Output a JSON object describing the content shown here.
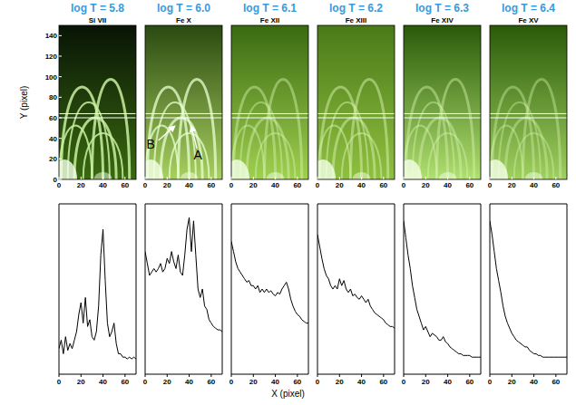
{
  "images": {
    "y_label": "Y (pixel)",
    "xlim": [
      0,
      70
    ],
    "xticks": [
      0,
      20,
      40,
      60
    ],
    "ylim": [
      0,
      150
    ],
    "yticks": [
      0,
      20,
      40,
      60,
      80,
      100,
      120,
      140
    ],
    "cut_y": [
      60,
      64
    ],
    "annotations": [
      {
        "label": "B",
        "panel": 1
      },
      {
        "label": "A",
        "panel": 1
      }
    ]
  },
  "x_label": "X (pixel)",
  "chart_data": [
    {
      "type": "line",
      "title": "log T = 5.8",
      "subtitle": "Si VII",
      "color": "#000000",
      "tick_labels": "x",
      "xlim": [
        0,
        70
      ],
      "xticks": [
        0,
        20,
        40,
        60
      ],
      "ylim": [
        0,
        100
      ],
      "x": [
        0,
        2,
        4,
        6,
        8,
        10,
        12,
        14,
        16,
        18,
        20,
        22,
        24,
        26,
        28,
        30,
        32,
        34,
        36,
        38,
        40,
        42,
        44,
        46,
        48,
        50,
        52,
        54,
        56,
        58,
        60,
        62,
        64,
        66,
        68,
        70
      ],
      "values": [
        15,
        20,
        12,
        22,
        14,
        18,
        15,
        20,
        25,
        35,
        42,
        30,
        45,
        28,
        32,
        22,
        20,
        25,
        40,
        70,
        85,
        55,
        30,
        22,
        25,
        30,
        18,
        12,
        12,
        10,
        10,
        9,
        10,
        9,
        10,
        9
      ]
    },
    {
      "type": "line",
      "title": "log T = 6.0",
      "subtitle": "Fe X",
      "color": "#000000",
      "tick_labels": "x",
      "xlim": [
        0,
        70
      ],
      "xticks": [
        0,
        20,
        40,
        60
      ],
      "ylim": [
        0,
        100
      ],
      "x": [
        0,
        2,
        4,
        6,
        8,
        10,
        12,
        14,
        16,
        18,
        20,
        22,
        24,
        26,
        28,
        30,
        32,
        34,
        36,
        38,
        40,
        42,
        44,
        46,
        48,
        50,
        52,
        54,
        56,
        58,
        60,
        62,
        64,
        66,
        68,
        70
      ],
      "values": [
        72,
        65,
        58,
        60,
        62,
        60,
        62,
        65,
        60,
        62,
        68,
        65,
        72,
        66,
        62,
        70,
        60,
        58,
        70,
        85,
        92,
        72,
        90,
        70,
        50,
        45,
        50,
        40,
        38,
        32,
        30,
        28,
        27,
        26,
        26,
        25
      ]
    },
    {
      "type": "line",
      "title": "log T = 6.1",
      "subtitle": "Fe XII",
      "color": "#000000",
      "tick_labels": "x",
      "xlim": [
        0,
        70
      ],
      "xticks": [
        0,
        20,
        40,
        60
      ],
      "ylim": [
        0,
        100
      ],
      "x": [
        0,
        2,
        4,
        6,
        8,
        10,
        12,
        14,
        16,
        18,
        20,
        22,
        24,
        26,
        28,
        30,
        32,
        34,
        36,
        38,
        40,
        42,
        44,
        46,
        48,
        50,
        52,
        54,
        56,
        58,
        60,
        62,
        64,
        66,
        68,
        70
      ],
      "values": [
        78,
        72,
        66,
        62,
        60,
        58,
        56,
        54,
        55,
        52,
        52,
        50,
        52,
        48,
        50,
        48,
        50,
        48,
        49,
        47,
        46,
        48,
        47,
        50,
        52,
        54,
        50,
        44,
        40,
        37,
        35,
        34,
        32,
        31,
        30,
        30
      ]
    },
    {
      "type": "line",
      "title": "log T = 6.2",
      "subtitle": "Fe XIII",
      "color": "#000000",
      "tick_labels": "x",
      "xlim": [
        0,
        70
      ],
      "xticks": [
        0,
        20,
        40,
        60
      ],
      "ylim": [
        0,
        100
      ],
      "x": [
        0,
        2,
        4,
        6,
        8,
        10,
        12,
        14,
        16,
        18,
        20,
        22,
        24,
        26,
        28,
        30,
        32,
        34,
        36,
        38,
        40,
        42,
        44,
        46,
        48,
        50,
        52,
        54,
        56,
        58,
        60,
        62,
        64,
        66,
        68,
        70
      ],
      "values": [
        82,
        75,
        68,
        62,
        58,
        56,
        52,
        50,
        52,
        50,
        56,
        52,
        55,
        50,
        48,
        50,
        46,
        47,
        45,
        44,
        46,
        44,
        42,
        44,
        40,
        38,
        36,
        35,
        34,
        33,
        32,
        30,
        29,
        28,
        28,
        27
      ]
    },
    {
      "type": "line",
      "title": "log T = 6.3",
      "subtitle": "Fe XIV",
      "color": "#000000",
      "tick_labels": "x",
      "xlim": [
        0,
        70
      ],
      "xticks": [
        0,
        20,
        40,
        60
      ],
      "ylim": [
        0,
        100
      ],
      "x": [
        0,
        2,
        4,
        6,
        8,
        10,
        12,
        14,
        16,
        18,
        20,
        22,
        24,
        26,
        28,
        30,
        32,
        34,
        36,
        38,
        40,
        42,
        44,
        46,
        48,
        50,
        52,
        54,
        56,
        58,
        60,
        62,
        64,
        66,
        68,
        70
      ],
      "values": [
        90,
        80,
        70,
        62,
        52,
        45,
        38,
        34,
        30,
        26,
        28,
        25,
        22,
        24,
        23,
        22,
        20,
        20,
        22,
        19,
        18,
        16,
        15,
        14,
        13,
        12,
        12,
        11,
        11,
        11,
        11,
        10,
        10,
        10,
        10,
        10
      ]
    },
    {
      "type": "line",
      "title": "log T = 6.4",
      "subtitle": "Fe XV",
      "color": "#000000",
      "tick_labels": "x",
      "xlim": [
        0,
        70
      ],
      "xticks": [
        0,
        20,
        40,
        60
      ],
      "ylim": [
        0,
        100
      ],
      "x": [
        0,
        2,
        4,
        6,
        8,
        10,
        12,
        14,
        16,
        18,
        20,
        22,
        24,
        26,
        28,
        30,
        32,
        34,
        36,
        38,
        40,
        42,
        44,
        46,
        48,
        50,
        52,
        54,
        56,
        58,
        60,
        62,
        64,
        66,
        68,
        70
      ],
      "values": [
        90,
        82,
        72,
        62,
        55,
        48,
        40,
        34,
        30,
        27,
        24,
        22,
        20,
        19,
        18,
        17,
        16,
        16,
        14,
        13,
        12,
        12,
        11,
        11,
        10,
        10,
        10,
        10,
        10,
        10,
        10,
        10,
        10,
        10,
        10,
        10
      ]
    }
  ]
}
